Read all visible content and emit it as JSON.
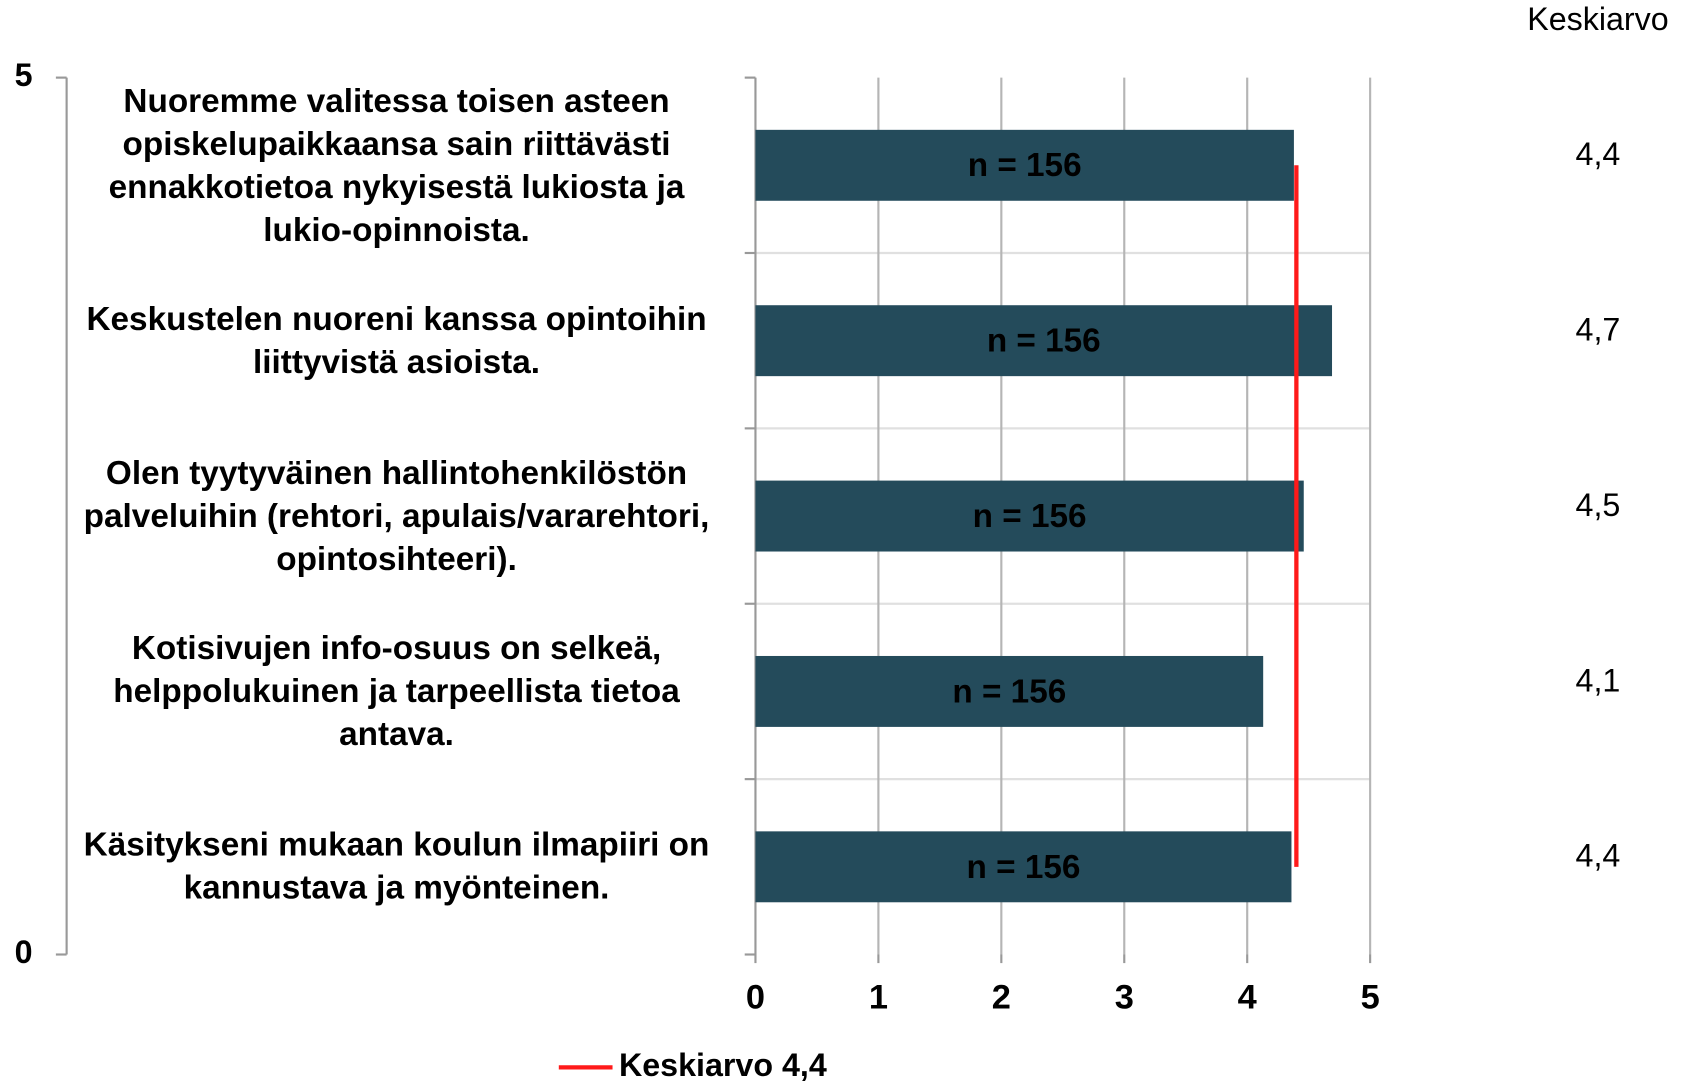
{
  "chart_data": {
    "type": "bar",
    "orientation": "horizontal",
    "categories": [
      "Nuoremme valitessa toisen asteen opiskelupaikkaansa sain riittävästi ennakkotietoa nykyisestä lukiosta ja lukio-opinnoista.",
      "Keskustelen nuoreni kanssa opintoihin liittyvistä asioista.",
      "Olen tyytyväinen hallintohenkilöstön palveluihin (rehtori, apulais/vararehtori, opintosihteeri).",
      "Kotisivujen info-osuus on selkeä, helppolukuinen ja tarpeellista tietoa antava.",
      "Käsitykseni mukaan koulun ilmapiiri on kannustava ja myönteinen."
    ],
    "series": [
      {
        "color": "#244b5b",
        "values": [
          4.38,
          4.69,
          4.46,
          4.13,
          4.36
        ],
        "bar_labels": [
          "n = 156",
          "n = 156",
          "n = 156",
          "n = 156",
          "n = 156"
        ],
        "value_labels": [
          "4,4",
          "4,7",
          "4,5",
          "4,1",
          "4,4"
        ]
      },
      {
        "name": "Keskiarvo 4,4",
        "color": "#ff1a1a",
        "axis": "y2",
        "x": [
          4.4,
          4.4
        ],
        "values": [
          4.5,
          0.5
        ]
      }
    ],
    "value_labels_header": "Keskiarvo",
    "xlim": [
      0,
      5
    ],
    "xticks": [
      0,
      1,
      2,
      3,
      4,
      5
    ],
    "y2lim": [
      0,
      5
    ],
    "y2ticks": [
      0,
      5
    ],
    "grid": true,
    "legend": "bottom"
  }
}
